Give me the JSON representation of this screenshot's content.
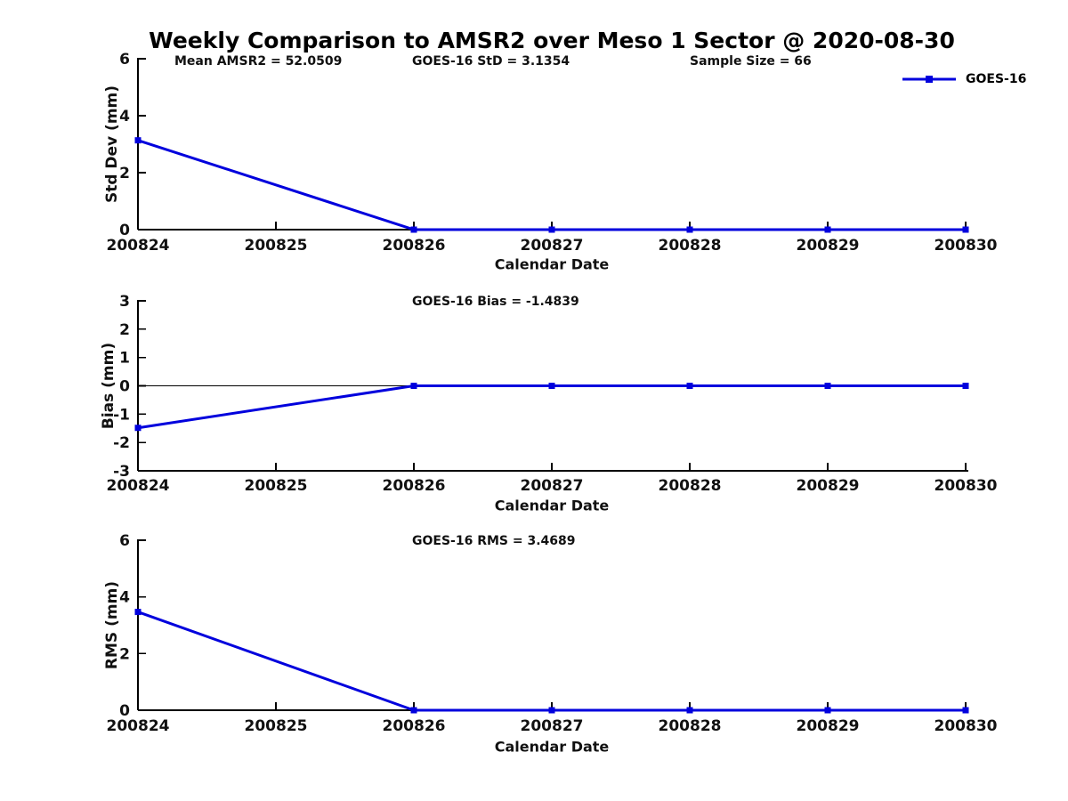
{
  "figure": {
    "title": "Weekly Comparison to AMSR2 over Meso 1 Sector @ 2020-08-30",
    "background": "#ffffff",
    "text_color": "#000000",
    "accent_color": "#0000dd"
  },
  "legend": {
    "label": "GOES-16",
    "line_color": "#0000dd",
    "marker": "filled-square",
    "position": "top-right"
  },
  "chart_data": [
    {
      "id": "std-dev",
      "type": "line",
      "title": "",
      "xlabel": "Calendar Date",
      "ylabel": "Std Dev (mm)",
      "x_categories": [
        "200824",
        "200825",
        "200826",
        "200827",
        "200828",
        "200829",
        "200830"
      ],
      "ylim": [
        0,
        6
      ],
      "y_ticks": [
        0,
        2,
        4,
        6
      ],
      "grid": false,
      "zero_line": false,
      "annotations": [
        "Mean AMSR2 = 52.0509",
        "GOES-16 StD = 3.1354",
        "Sample Size = 66"
      ],
      "series": [
        {
          "name": "GOES-16",
          "color": "#0000dd",
          "marker": "square",
          "points": [
            [
              200824,
              3.1354
            ],
            [
              200826,
              0
            ],
            [
              200827,
              0
            ],
            [
              200828,
              0
            ],
            [
              200829,
              0
            ],
            [
              200830,
              0
            ]
          ]
        }
      ]
    },
    {
      "id": "bias",
      "type": "line",
      "title": "",
      "xlabel": "Calendar Date",
      "ylabel": "Bias (mm)",
      "x_categories": [
        "200824",
        "200825",
        "200826",
        "200827",
        "200828",
        "200829",
        "200830"
      ],
      "ylim": [
        -3,
        3
      ],
      "y_ticks": [
        -3,
        -2,
        -1,
        0,
        1,
        2,
        3
      ],
      "grid": false,
      "zero_line": true,
      "annotations": [
        "GOES-16 Bias  = -1.4839"
      ],
      "series": [
        {
          "name": "GOES-16",
          "color": "#0000dd",
          "marker": "square",
          "points": [
            [
              200824,
              -1.4839
            ],
            [
              200826,
              0
            ],
            [
              200827,
              0
            ],
            [
              200828,
              0
            ],
            [
              200829,
              0
            ],
            [
              200830,
              0
            ]
          ]
        }
      ]
    },
    {
      "id": "rms",
      "type": "line",
      "title": "",
      "xlabel": "Calendar Date",
      "ylabel": "RMS (mm)",
      "x_categories": [
        "200824",
        "200825",
        "200826",
        "200827",
        "200828",
        "200829",
        "200830"
      ],
      "ylim": [
        0,
        6
      ],
      "y_ticks": [
        0,
        2,
        4,
        6
      ],
      "grid": false,
      "zero_line": false,
      "annotations": [
        "GOES-16 RMS = 3.4689"
      ],
      "series": [
        {
          "name": "GOES-16",
          "color": "#0000dd",
          "marker": "square",
          "points": [
            [
              200824,
              3.4689
            ],
            [
              200826,
              0
            ],
            [
              200827,
              0
            ],
            [
              200828,
              0
            ],
            [
              200829,
              0
            ],
            [
              200830,
              0
            ]
          ]
        }
      ]
    }
  ]
}
